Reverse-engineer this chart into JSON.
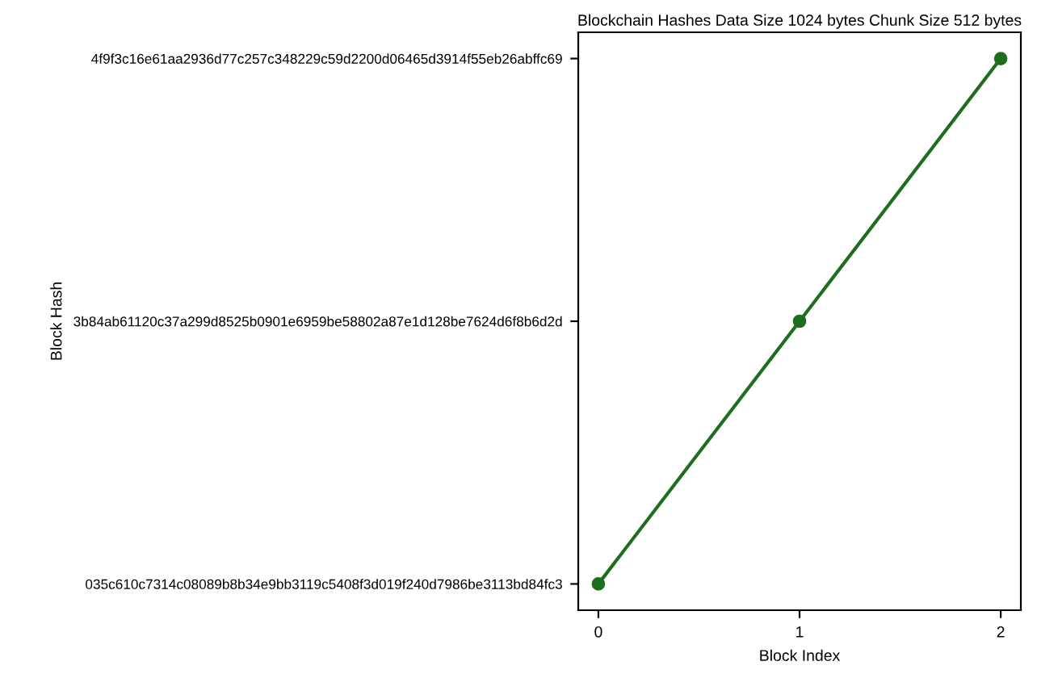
{
  "chart_data": {
    "type": "line",
    "orientation": "horizontal",
    "title": "Blockchain Hashes Data Size 1024 bytes Chunk Size 512 bytes",
    "xlabel": "Block Index",
    "ylabel": "Block Hash",
    "categories": [
      "4f9f3c16e61aa2936d77c257c348229c59d2200d06465d3914f55eb26abffc69",
      "3b84ab61120c37a299d8525b0901e6959be58802a87e1d128be7624d6f8b6d2d",
      "035c610c7314c08089b8b34e9bb3119c5408f3d019f240d7986be3113bd84fc3"
    ],
    "series": [
      {
        "color": "#1f6e1f",
        "values": [
          2,
          1,
          0
        ]
      }
    ],
    "xlim": [
      -0.1,
      2.1
    ],
    "xticks": [
      0,
      1,
      2
    ],
    "marker": "circle",
    "line_style": "solid"
  }
}
